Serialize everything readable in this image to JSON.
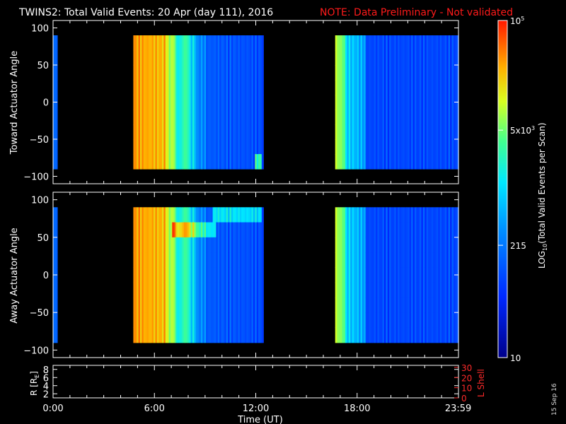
{
  "header": {
    "title": "TWINS2: Total Valid Events: 20 Apr (day 111), 2016",
    "note": "NOTE: Data Preliminary - Not validated"
  },
  "colors": {
    "background": "#000000",
    "axes": "#ffffff",
    "note": "#ff1a1a",
    "lshell": "#ff2a2a"
  },
  "chart_data": [
    {
      "type": "heatmap",
      "ylabel": "Toward Actuator Angle",
      "ylim": [
        -110,
        110
      ],
      "yticks": [
        100,
        50,
        0,
        -50,
        -100
      ],
      "xlim": [
        0,
        24
      ],
      "data_blocks_hours": [
        [
          0.0,
          0.25
        ],
        [
          4.75,
          12.45
        ],
        [
          16.7,
          24.0
        ]
      ],
      "ylim_data": [
        -90,
        90
      ]
    },
    {
      "type": "heatmap",
      "ylabel": "Away Actuator Angle",
      "ylim": [
        -110,
        110
      ],
      "yticks": [
        100,
        50,
        0,
        -50,
        -100
      ],
      "xlim": [
        0,
        24
      ],
      "data_blocks_hours": [
        [
          0.0,
          0.25
        ],
        [
          4.75,
          12.45
        ],
        [
          16.7,
          24.0
        ]
      ],
      "ylim_data": [
        -90,
        90
      ]
    },
    {
      "type": "line",
      "ylabel": "R [R",
      "ylabel_sub": "E",
      "ylabel_close": "]",
      "yticks": [
        8,
        6,
        4,
        2
      ],
      "ylim": [
        1,
        9
      ],
      "right_label": "L Shell",
      "right_yticks": [
        30,
        20,
        10,
        0
      ],
      "right_ylim": [
        0,
        32
      ]
    }
  ],
  "x_axis": {
    "label": "Time (UT)",
    "ticks": [
      "0:00",
      "6:00",
      "12:00",
      "18:00",
      "23:59"
    ],
    "tick_hours": [
      0,
      6,
      12,
      18,
      23.983
    ]
  },
  "colorbar": {
    "label_main": "LOG",
    "label_sub": "10",
    "label_rest": "(Total Valid Events per Scan)",
    "scale": "log",
    "range": [
      10,
      100000
    ],
    "ticks": [
      {
        "mantissa": "10",
        "exp": "5",
        "value": 100000
      },
      {
        "mantissa": "5x10",
        "exp": "3",
        "value": 5000
      },
      {
        "mantissa": "215",
        "exp": "",
        "value": 215
      },
      {
        "mantissa": "10",
        "exp": "",
        "value": 10
      }
    ]
  },
  "footer": {
    "date_stamp": "15 Sep 16"
  }
}
